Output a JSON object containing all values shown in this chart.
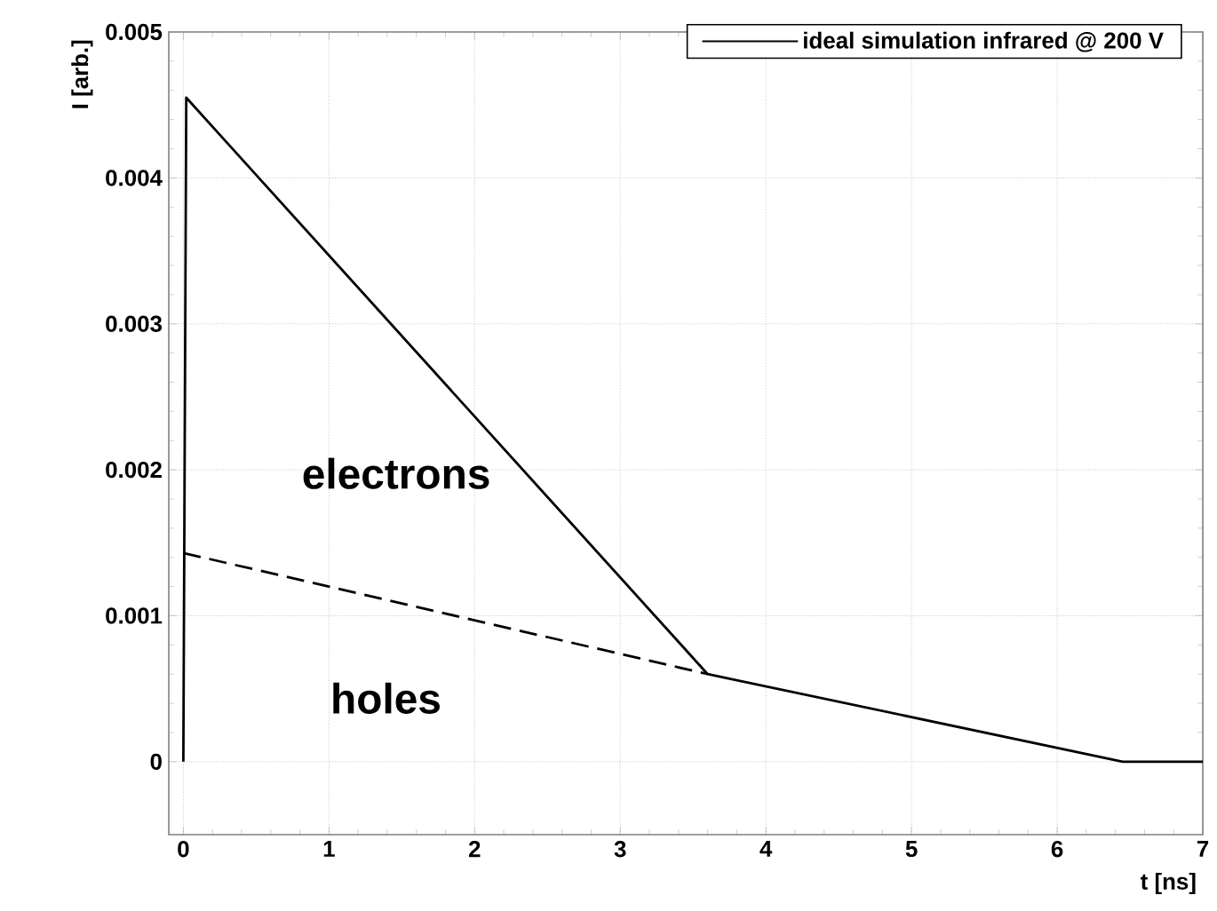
{
  "chart_data": {
    "type": "line",
    "xlabel": "t [ns]",
    "ylabel": "I [arb.]",
    "xlim": [
      -0.1,
      7
    ],
    "ylim": [
      -0.0005,
      0.005
    ],
    "xticks": [
      0,
      1,
      2,
      3,
      4,
      5,
      6,
      7
    ],
    "yticks": [
      0,
      0.001,
      0.002,
      0.003,
      0.004,
      0.005
    ],
    "grid": true,
    "legend": "top right",
    "annotations": [
      "electrons",
      "holes"
    ],
    "series": [
      {
        "name": "ideal simulation infrared @ 200 V",
        "color": "#000000",
        "line_style": "solid",
        "x": [
          0,
          0.02,
          3.6,
          6.45,
          7
        ],
        "values": [
          0,
          0.00455,
          0.0006,
          0,
          0
        ]
      },
      {
        "color": "#000000",
        "line_style": "dashed",
        "x": [
          0,
          3.6
        ],
        "values": [
          0.00143,
          0.0006
        ]
      }
    ]
  }
}
